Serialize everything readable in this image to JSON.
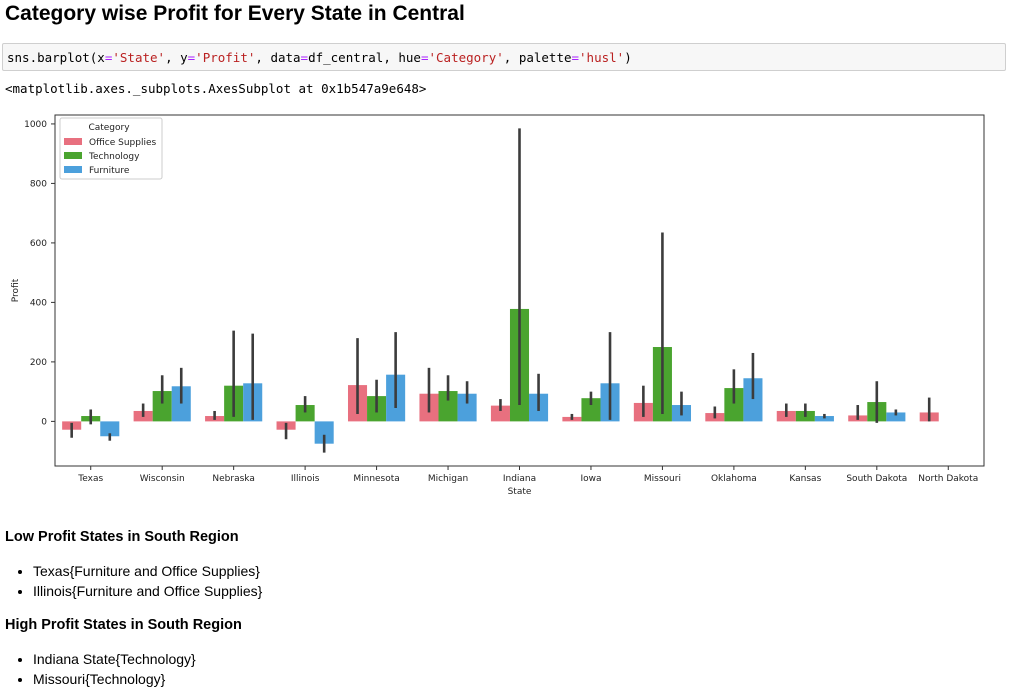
{
  "notebook": {
    "heading": "Category wise Profit for Every State in Central",
    "code": {
      "prefix": "sns.barplot(x",
      "eq1": "=",
      "s1": "'State'",
      "m1": ", y",
      "eq2": "=",
      "s2": "'Profit'",
      "m2": ", data",
      "eq3": "=",
      "m3": "df_central, hue",
      "eq4": "=",
      "s3": "'Category'",
      "m4": ", palette",
      "eq5": "=",
      "s4": "'husl'",
      "suffix": ")"
    },
    "output_text": "<matplotlib.axes._subplots.AxesSubplot at 0x1b547a9e648>"
  },
  "chart_data": {
    "type": "bar",
    "xlabel": "State",
    "ylabel": "Profit",
    "ylim": [
      -150,
      1030
    ],
    "yticks": [
      0,
      200,
      400,
      600,
      800,
      1000
    ],
    "legend": {
      "title": "Category",
      "placement": "top-left"
    },
    "categories": [
      "Texas",
      "Wisconsin",
      "Nebraska",
      "Illinois",
      "Minnesota",
      "Michigan",
      "Indiana",
      "Iowa",
      "Missouri",
      "Oklahoma",
      "Kansas",
      "South Dakota",
      "North Dakota"
    ],
    "series": [
      {
        "name": "Office Supplies",
        "color": "#e8707f",
        "values": [
          -28,
          35,
          18,
          -28,
          122,
          93,
          53,
          15,
          62,
          28,
          35,
          20,
          30
        ],
        "err_low": [
          -55,
          15,
          5,
          -60,
          25,
          30,
          35,
          5,
          15,
          10,
          15,
          5,
          0
        ],
        "err_high": [
          -5,
          60,
          35,
          -5,
          280,
          180,
          75,
          25,
          120,
          50,
          60,
          55,
          80
        ]
      },
      {
        "name": "Technology",
        "color": "#4aa42f",
        "values": [
          18,
          102,
          120,
          55,
          85,
          102,
          378,
          78,
          250,
          112,
          35,
          65,
          null
        ],
        "err_low": [
          -10,
          60,
          15,
          30,
          30,
          70,
          55,
          55,
          25,
          60,
          15,
          -5,
          null
        ],
        "err_high": [
          40,
          155,
          305,
          85,
          140,
          155,
          985,
          100,
          635,
          175,
          60,
          135,
          null
        ],
        "err_label": ""
      },
      {
        "name": "Furniture",
        "color": "#4ca0dc",
        "values": [
          -50,
          118,
          128,
          -75,
          157,
          93,
          93,
          128,
          55,
          145,
          18,
          30,
          null
        ],
        "err_low": [
          -65,
          60,
          5,
          -105,
          45,
          60,
          35,
          5,
          20,
          75,
          10,
          20,
          null
        ],
        "err_high": [
          -40,
          180,
          295,
          -45,
          300,
          135,
          160,
          300,
          100,
          230,
          25,
          40,
          null
        ]
      }
    ]
  },
  "sections": [
    {
      "heading": "Low Profit States in South Region",
      "items": [
        "Texas{Furniture and Office Supplies}",
        "Illinois{Furniture and Office Supplies}"
      ]
    },
    {
      "heading": "High Profit States in South Region",
      "items": [
        "Indiana State{Technology}",
        "Missouri{Technology}"
      ]
    }
  ]
}
